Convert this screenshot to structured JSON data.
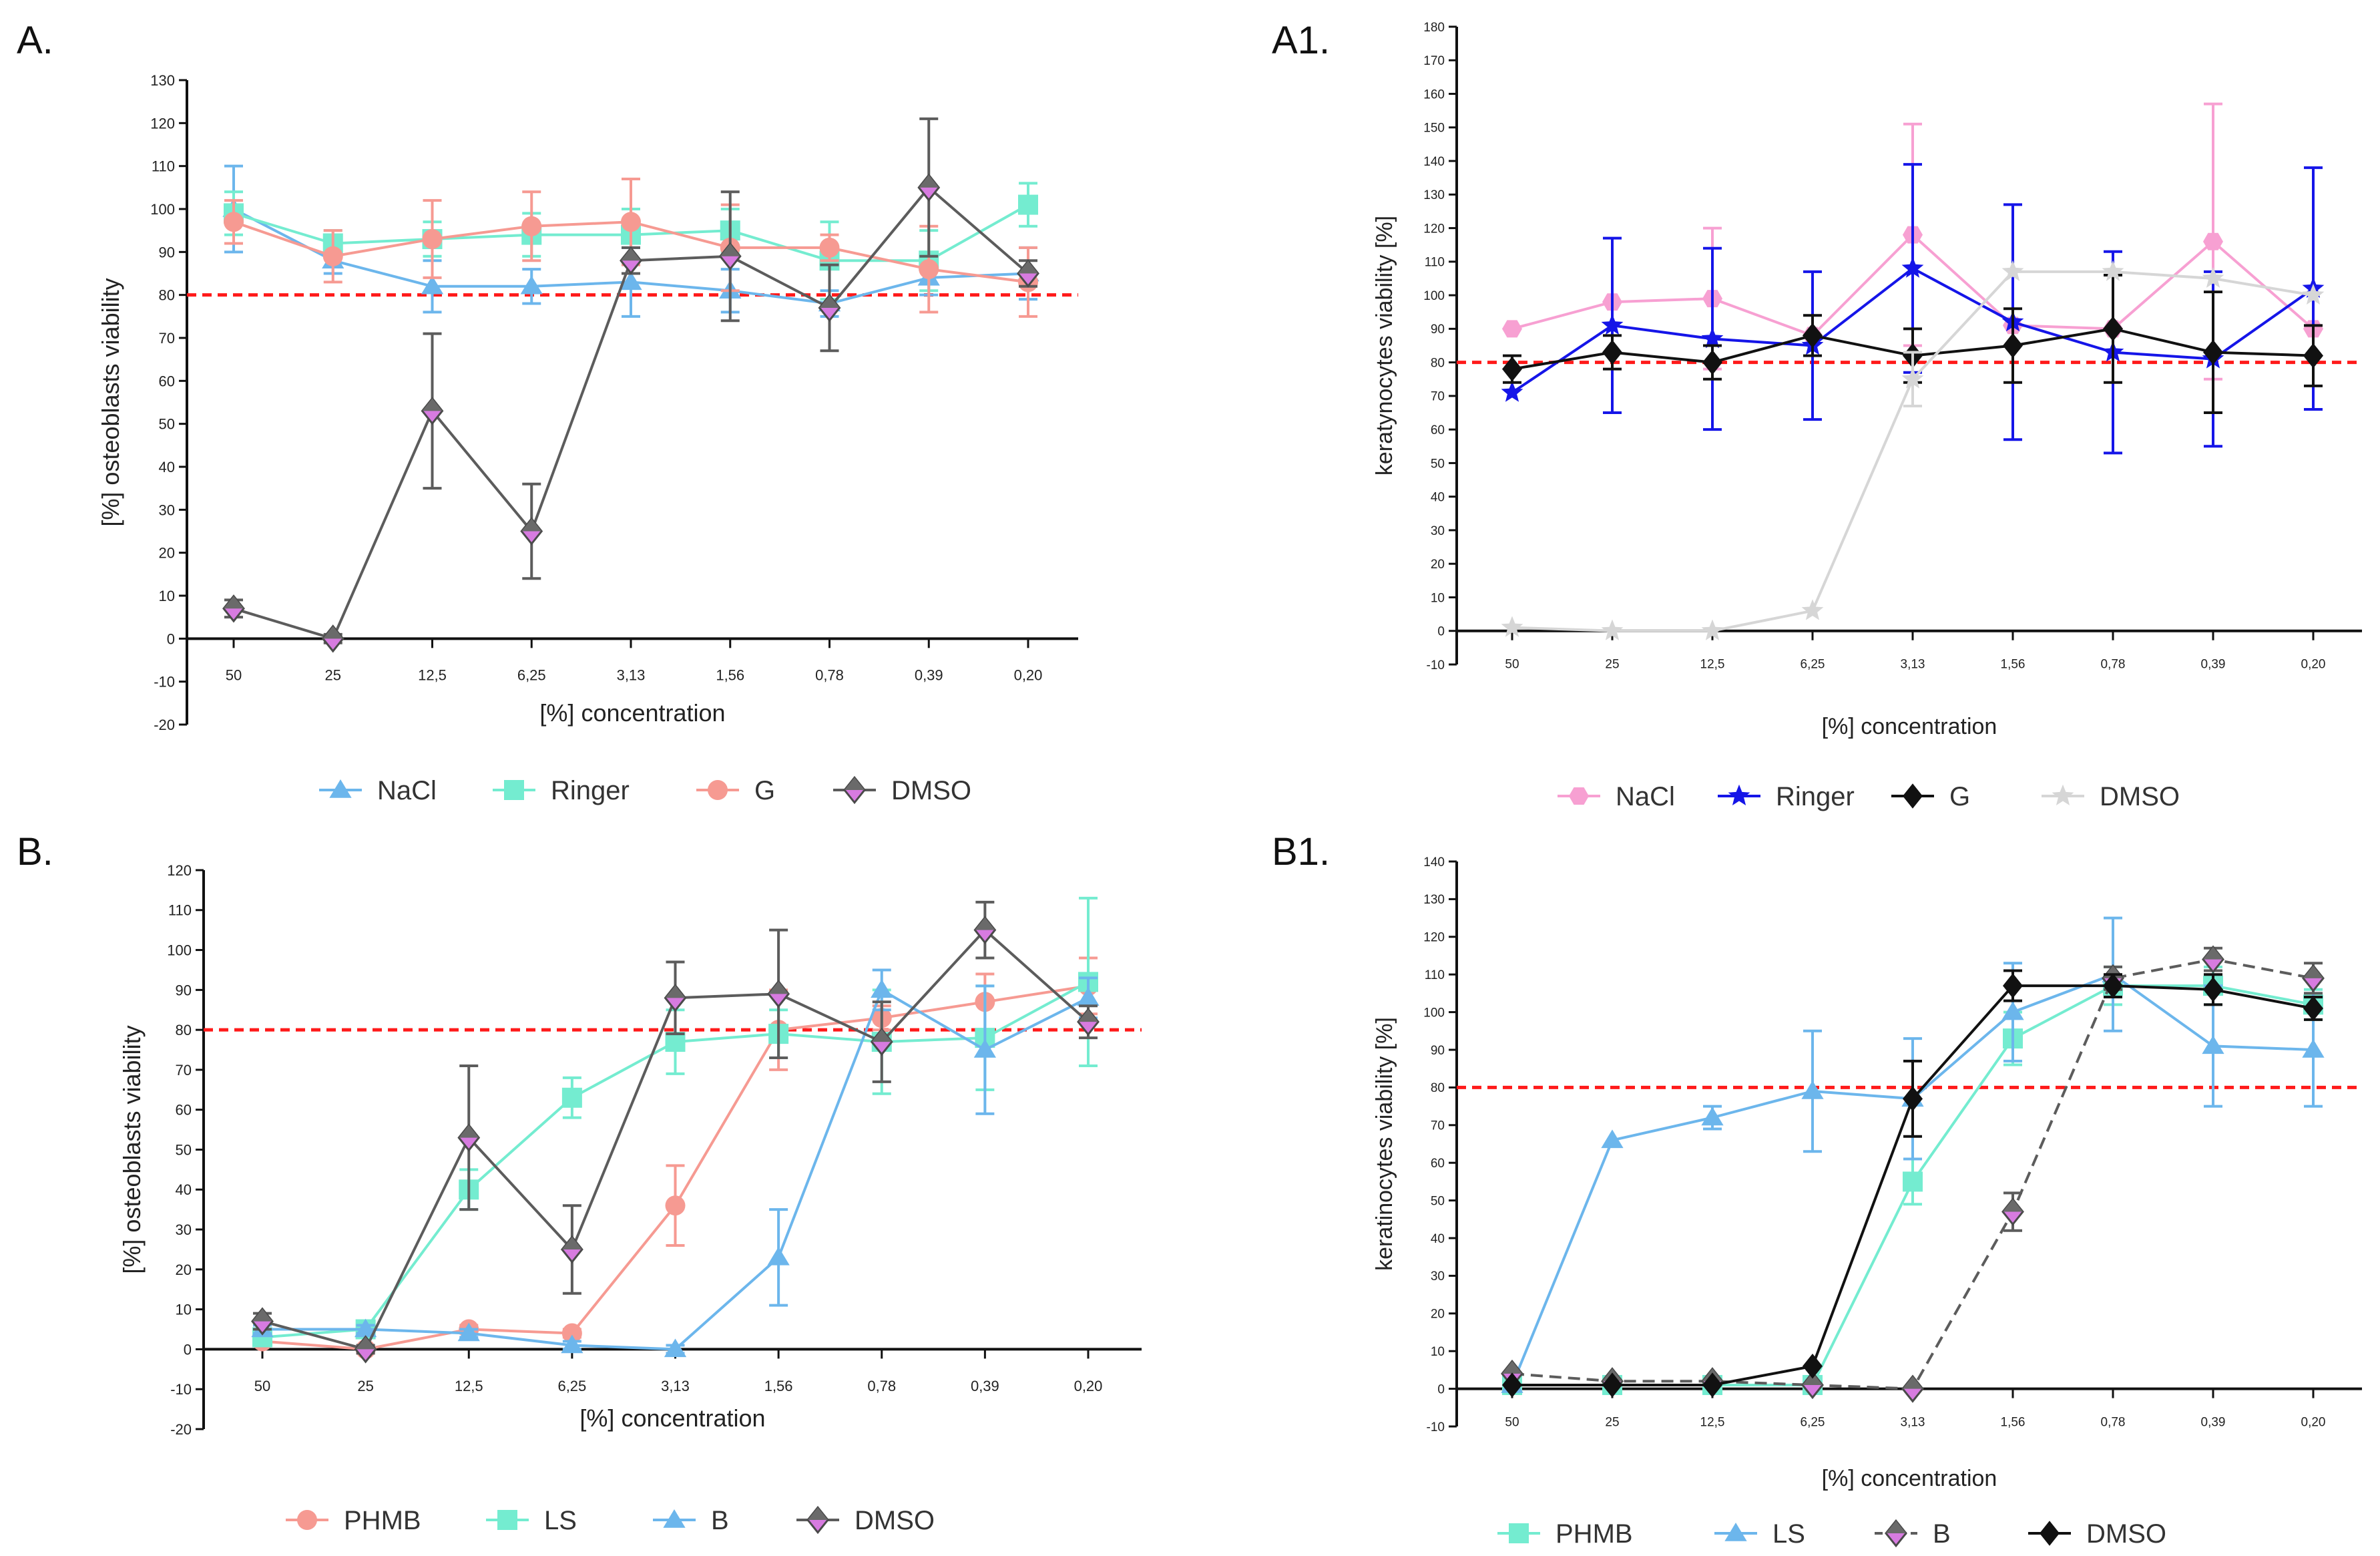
{
  "chart_data": [
    {
      "type": "line",
      "panel_label": "A.",
      "title": "",
      "xlabel": "[%] concentration",
      "ylabel": "[%] osteoblasts viability",
      "categories": [
        "50",
        "25",
        "12,5",
        "6,25",
        "3,13",
        "1,56",
        "0,78",
        "0,39",
        "0,20"
      ],
      "ylim": [
        -20,
        130
      ],
      "yticks": [
        -20,
        -10,
        0,
        10,
        20,
        30,
        40,
        50,
        60,
        70,
        80,
        90,
        100,
        110,
        120,
        130
      ],
      "threshold": 80,
      "series": [
        {
          "name": "NaCl",
          "color": "#6cb6ec",
          "marker": "triangle",
          "dashed": false,
          "values": [
            100,
            88,
            82,
            82,
            83,
            81,
            78,
            84,
            85
          ],
          "errors": [
            10,
            3,
            6,
            4,
            8,
            5,
            3,
            4,
            6
          ]
        },
        {
          "name": "Ringer",
          "color": "#74ecd0",
          "marker": "square",
          "dashed": false,
          "values": [
            99,
            92,
            93,
            94,
            94,
            95,
            88,
            88,
            101
          ],
          "errors": [
            5,
            3,
            4,
            5,
            6,
            5,
            9,
            7,
            5
          ]
        },
        {
          "name": "G",
          "color": "#f69a92",
          "marker": "circle",
          "dashed": false,
          "values": [
            97,
            89,
            93,
            96,
            97,
            91,
            91,
            86,
            83
          ],
          "errors": [
            5,
            6,
            9,
            8,
            10,
            10,
            3,
            10,
            8
          ]
        },
        {
          "name": "DMSO",
          "color": "#5c5c5c",
          "marker": "diamond",
          "dashed": false,
          "values": [
            7,
            0,
            53,
            25,
            88,
            89,
            77,
            105,
            85
          ],
          "errors": [
            2,
            1,
            18,
            11,
            3,
            15,
            10,
            16,
            3
          ]
        }
      ],
      "legend": [
        "NaCl",
        "Ringer",
        "G",
        "DMSO"
      ],
      "legend_position": "bottom"
    },
    {
      "type": "line",
      "panel_label": "A1.",
      "title": "",
      "xlabel": "[%] concentration",
      "ylabel": "keratynocytes viability [%]",
      "categories": [
        "50",
        "25",
        "12,5",
        "6,25",
        "3,13",
        "1,56",
        "0,78",
        "0,39",
        "0,20"
      ],
      "ylim": [
        -10,
        180
      ],
      "yticks": [
        -10,
        0,
        10,
        20,
        30,
        40,
        50,
        60,
        70,
        80,
        90,
        100,
        110,
        120,
        130,
        140,
        150,
        160,
        170,
        180
      ],
      "threshold": 80,
      "series": [
        {
          "name": "NaCl",
          "color": "#f7a0d2",
          "marker": "hexagon",
          "dashed": false,
          "values": [
            90,
            98,
            99,
            88,
            118,
            91,
            90,
            116,
            90
          ],
          "errors": [
            0,
            0,
            21,
            0,
            33,
            0,
            0,
            41,
            0
          ]
        },
        {
          "name": "Ringer",
          "color": "#1515e8",
          "marker": "star",
          "dashed": false,
          "values": [
            71,
            91,
            87,
            85,
            108,
            92,
            83,
            81,
            102
          ],
          "errors": [
            0,
            26,
            27,
            22,
            31,
            35,
            30,
            26,
            36
          ]
        },
        {
          "name": "G",
          "color": "#111111",
          "marker": "diamond",
          "dashed": false,
          "values": [
            78,
            83,
            80,
            88,
            82,
            85,
            90,
            83,
            82
          ],
          "errors": [
            4,
            5,
            5,
            6,
            8,
            11,
            16,
            18,
            9
          ]
        },
        {
          "name": "DMSO",
          "color": "#d6d6d6",
          "marker": "star",
          "dashed": false,
          "values": [
            1,
            0,
            0,
            6,
            75,
            107,
            107,
            105,
            100
          ],
          "errors": [
            0,
            0,
            0,
            0,
            8,
            0,
            0,
            0,
            0
          ]
        }
      ],
      "legend": [
        "NaCl",
        "Ringer",
        "G",
        "DMSO"
      ],
      "legend_position": "bottom"
    },
    {
      "type": "line",
      "panel_label": "B.",
      "title": "",
      "xlabel": "[%] concentration",
      "ylabel": "[%] osteoblasts viability",
      "categories": [
        "50",
        "25",
        "12,5",
        "6,25",
        "3,13",
        "1,56",
        "0,78",
        "0,39",
        "0,20"
      ],
      "ylim": [
        -20,
        120
      ],
      "yticks": [
        -20,
        -10,
        0,
        10,
        20,
        30,
        40,
        50,
        60,
        70,
        80,
        90,
        100,
        110,
        120
      ],
      "threshold": 80,
      "series": [
        {
          "name": "PHMB",
          "color": "#f69a92",
          "marker": "circle",
          "dashed": false,
          "values": [
            2,
            0,
            5,
            4,
            36,
            80,
            83,
            87,
            91
          ],
          "errors": [
            1,
            1,
            1,
            1,
            10,
            10,
            3,
            7,
            7
          ]
        },
        {
          "name": "LS",
          "color": "#74ecd0",
          "marker": "square",
          "dashed": false,
          "values": [
            3,
            5,
            40,
            63,
            77,
            79,
            77,
            78,
            92
          ],
          "errors": [
            1,
            2,
            5,
            5,
            8,
            6,
            13,
            13,
            21
          ]
        },
        {
          "name": "B",
          "color": "#6cb6ec",
          "marker": "triangle",
          "dashed": false,
          "values": [
            5,
            5,
            4,
            1,
            0,
            23,
            90,
            75,
            88
          ],
          "errors": [
            1,
            1,
            1,
            1,
            1,
            12,
            5,
            16,
            5
          ]
        },
        {
          "name": "DMSO",
          "color": "#5c5c5c",
          "marker": "diamond",
          "dashed": false,
          "values": [
            7,
            0,
            53,
            25,
            88,
            89,
            77,
            105,
            82
          ],
          "errors": [
            2,
            1,
            18,
            11,
            9,
            16,
            10,
            7,
            4
          ]
        }
      ],
      "legend": [
        "PHMB",
        "LS",
        "B",
        "DMSO"
      ],
      "legend_position": "bottom"
    },
    {
      "type": "line",
      "panel_label": "B1.",
      "title": "",
      "xlabel": "[%] concentration",
      "ylabel": "keratinocytes viability [%]",
      "categories": [
        "50",
        "25",
        "12,5",
        "6,25",
        "3,13",
        "1,56",
        "0,78",
        "0,39",
        "0,20"
      ],
      "ylim": [
        -10,
        140
      ],
      "yticks": [
        -10,
        0,
        10,
        20,
        30,
        40,
        50,
        60,
        70,
        80,
        90,
        100,
        110,
        120,
        130,
        140
      ],
      "threshold": 80,
      "series": [
        {
          "name": "PHMB",
          "color": "#74ecd0",
          "marker": "square",
          "dashed": false,
          "values": [
            1,
            1,
            1,
            1,
            55,
            93,
            107,
            107,
            102
          ],
          "errors": [
            0,
            0,
            0,
            0,
            6,
            7,
            5,
            5,
            4
          ]
        },
        {
          "name": "LS",
          "color": "#6cb6ec",
          "marker": "triangle",
          "dashed": false,
          "values": [
            1,
            66,
            72,
            79,
            77,
            100,
            110,
            91,
            90
          ],
          "errors": [
            0,
            0,
            3,
            16,
            16,
            13,
            15,
            16,
            15
          ]
        },
        {
          "name": "B",
          "color": "#5c5c5c",
          "marker": "diamond",
          "dashed": true,
          "values": [
            4,
            2,
            2,
            1,
            0,
            47,
            109,
            114,
            109
          ],
          "errors": [
            0,
            0,
            0,
            0,
            0,
            5,
            3,
            3,
            4
          ]
        },
        {
          "name": "DMSO",
          "color": "#111111",
          "marker": "diamond",
          "dashed": false,
          "values": [
            1,
            1,
            1,
            6,
            77,
            107,
            107,
            106,
            101
          ],
          "errors": [
            0,
            0,
            0,
            0,
            10,
            4,
            3,
            4,
            3
          ]
        }
      ],
      "legend": [
        "PHMB",
        "LS",
        "B",
        "DMSO"
      ],
      "legend_position": "bottom"
    }
  ]
}
